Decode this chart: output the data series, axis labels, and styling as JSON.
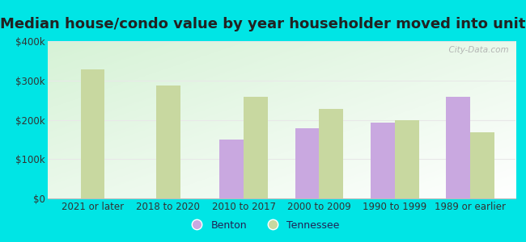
{
  "title": "Median house/condo value by year householder moved into unit",
  "categories": [
    "2021 or later",
    "2018 to 2020",
    "2010 to 2017",
    "2000 to 2009",
    "1990 to 1999",
    "1989 or earlier"
  ],
  "benton_values": [
    null,
    null,
    150000,
    178000,
    193000,
    258000
  ],
  "tennessee_values": [
    328000,
    288000,
    258000,
    228000,
    200000,
    168000
  ],
  "benton_color": "#c9a8e0",
  "tennessee_color": "#c8d8a0",
  "background_outer": "#00e5e5",
  "ylim": [
    0,
    400000
  ],
  "yticks": [
    0,
    100000,
    200000,
    300000,
    400000
  ],
  "ytick_labels": [
    "$0",
    "$100k",
    "$200k",
    "$300k",
    "$400k"
  ],
  "bar_width": 0.32,
  "watermark": "  City-Data.com",
  "legend_benton": "Benton",
  "legend_tennessee": "Tennessee",
  "grid_color": "#e8e8e8",
  "title_fontsize": 13,
  "tick_fontsize": 8.5
}
